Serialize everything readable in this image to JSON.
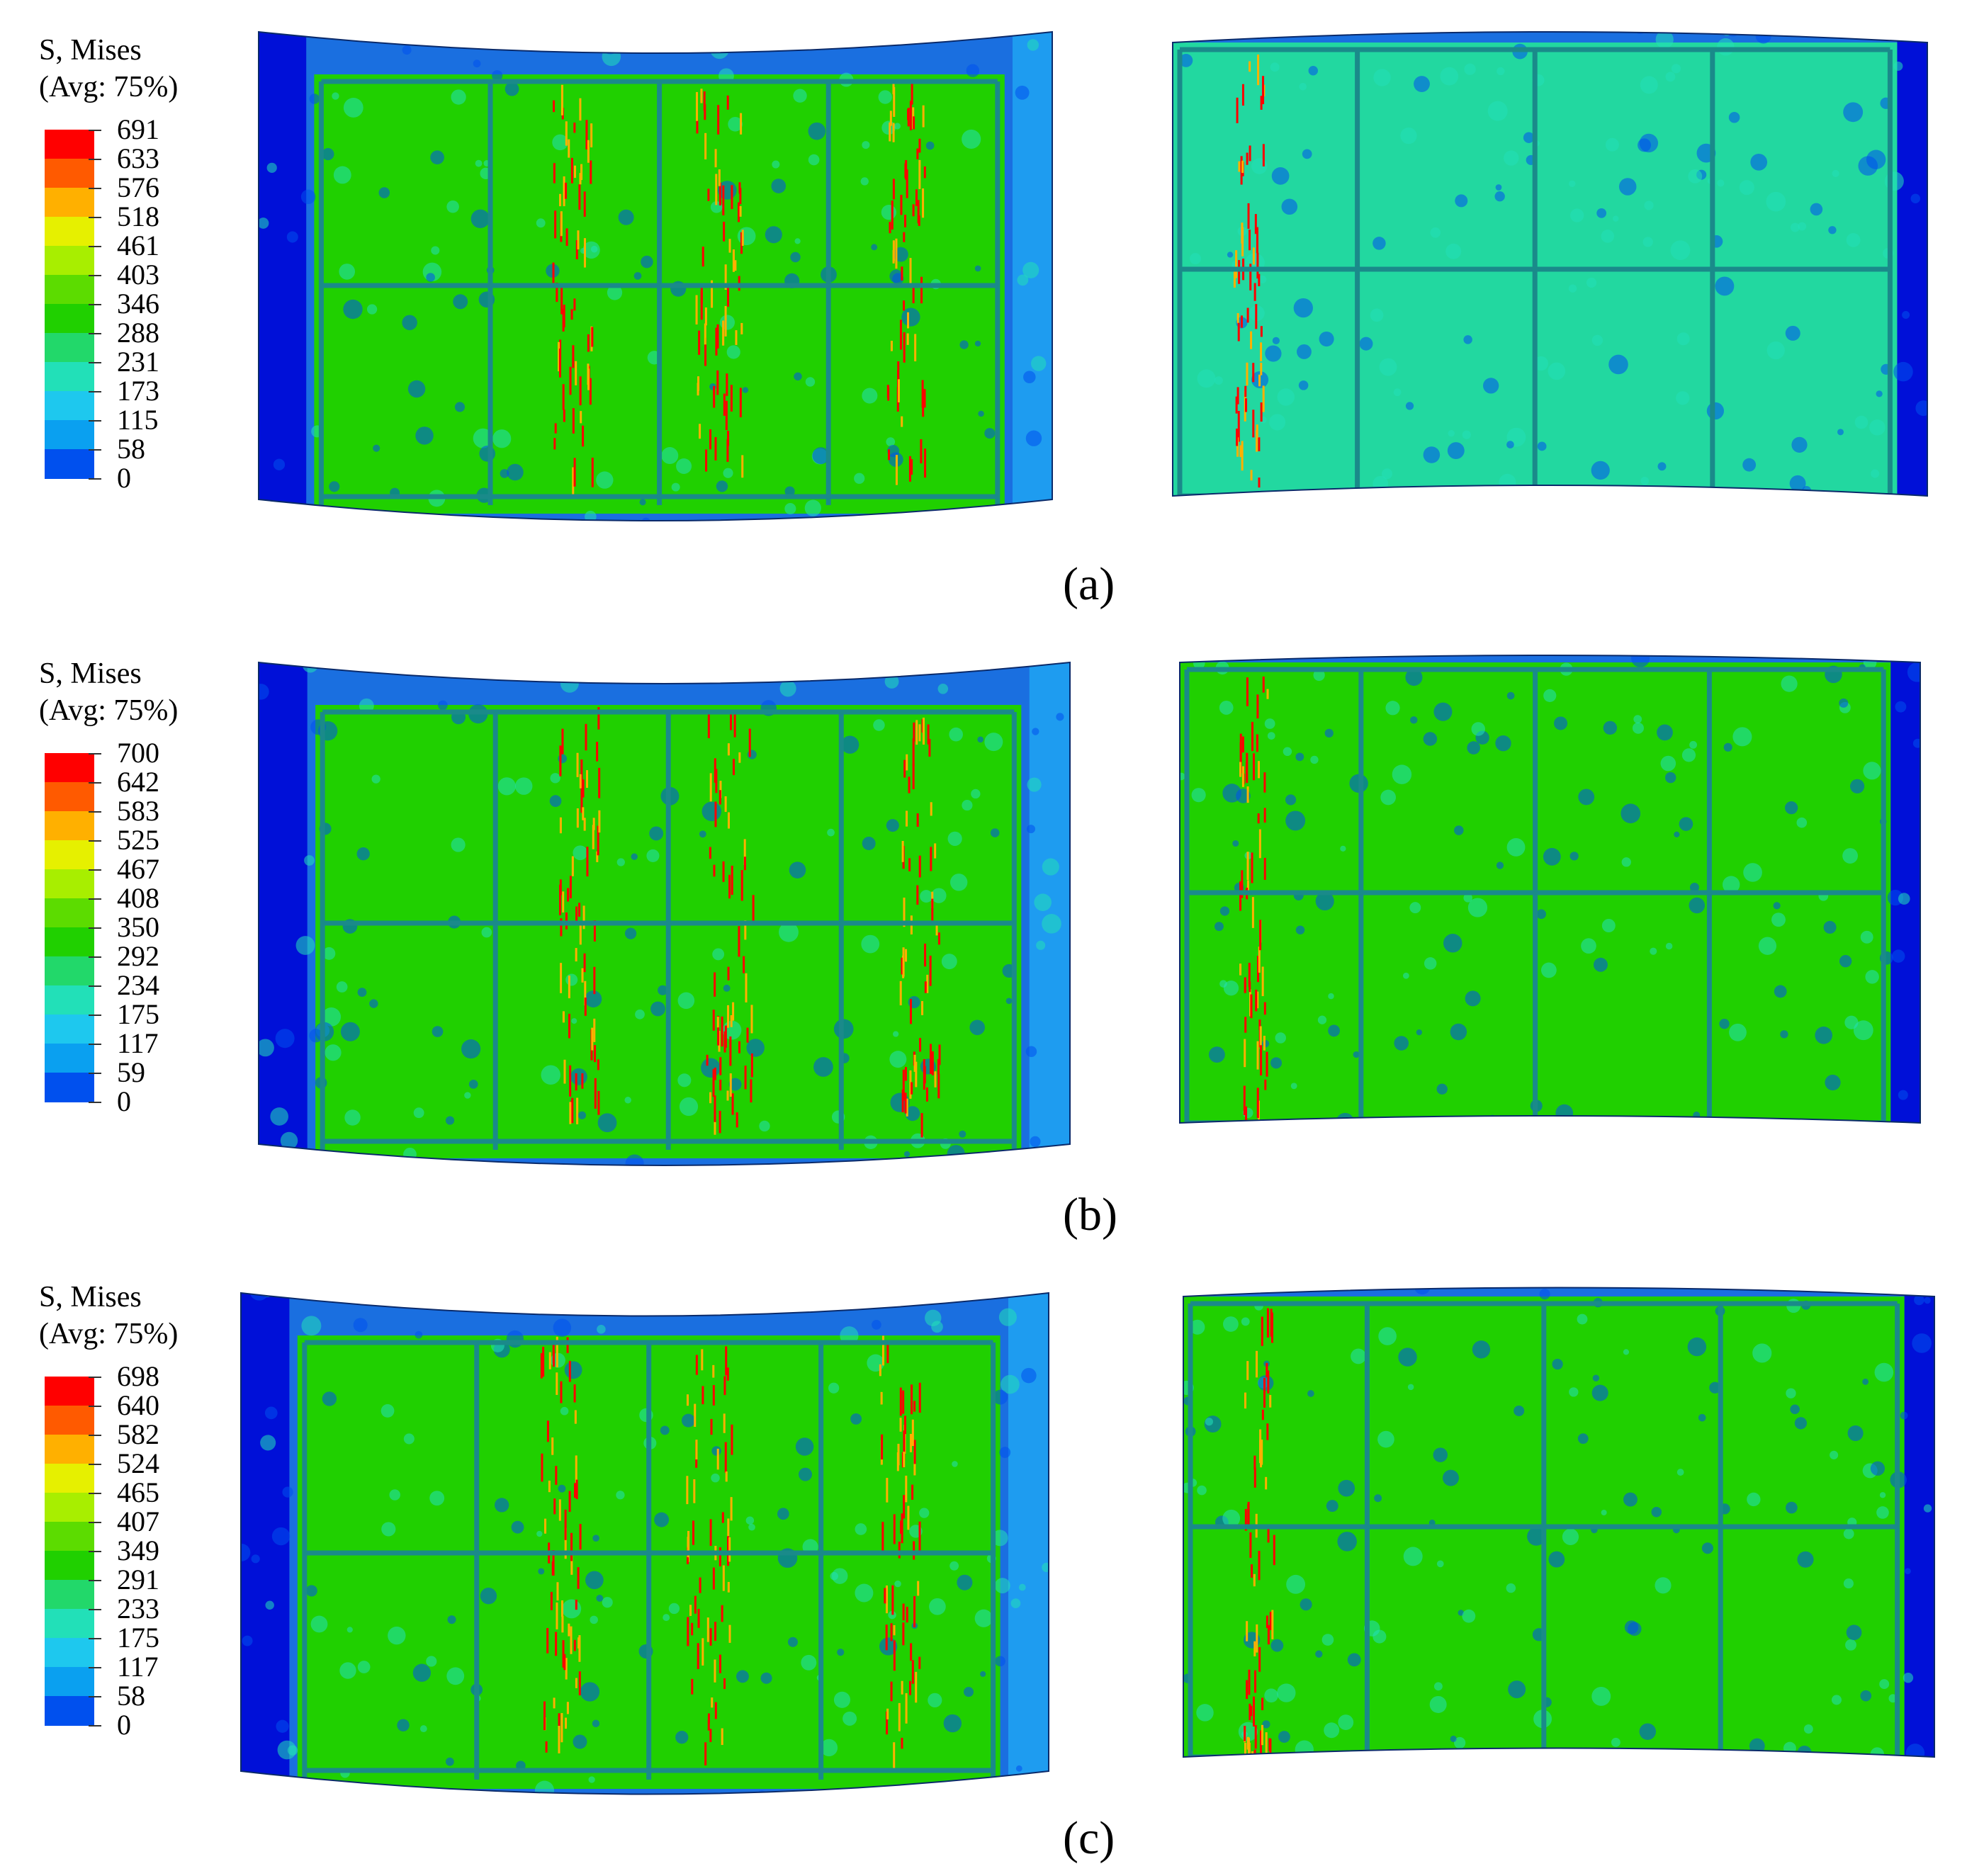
{
  "figure": {
    "panels": [
      {
        "id": "a",
        "caption": "(a)",
        "legend_title_line1": "S, Mises",
        "legend_title_line2": "(Avg: 75%)",
        "contour_levels": [
          "691",
          "633",
          "576",
          "518",
          "461",
          "403",
          "346",
          "288",
          "231",
          "173",
          "115",
          "58",
          "0"
        ],
        "left_view": "stiffened-panel-front-view",
        "right_view": "stiffened-panel-back-view"
      },
      {
        "id": "b",
        "caption": "(b)",
        "legend_title_line1": "S, Mises",
        "legend_title_line2": "(Avg: 75%)",
        "contour_levels": [
          "700",
          "642",
          "583",
          "525",
          "467",
          "408",
          "350",
          "292",
          "234",
          "175",
          "117",
          "59",
          "0"
        ],
        "left_view": "stiffened-panel-front-view",
        "right_view": "stiffened-panel-back-view"
      },
      {
        "id": "c",
        "caption": "(c)",
        "legend_title_line1": "S, Mises",
        "legend_title_line2": "(Avg: 75%)",
        "contour_levels": [
          "698",
          "640",
          "582",
          "524",
          "465",
          "407",
          "349",
          "291",
          "233",
          "175",
          "117",
          "58",
          "0"
        ],
        "left_view": "stiffened-panel-front-view",
        "right_view": "stiffened-panel-back-view"
      }
    ],
    "colormap": [
      "#ff0000",
      "#ff5a00",
      "#ffb000",
      "#e6f000",
      "#a8ee00",
      "#5cdc00",
      "#20d000",
      "#22d86a",
      "#22e0b8",
      "#1ec8ee",
      "#0aa0f0",
      "#0050ee",
      "#0010d8"
    ],
    "colors": {
      "stress_low": "#0010d8",
      "stress_mid": "#20d000",
      "stress_high": "#ff0000",
      "stiffener": "#1a8a8a"
    }
  }
}
